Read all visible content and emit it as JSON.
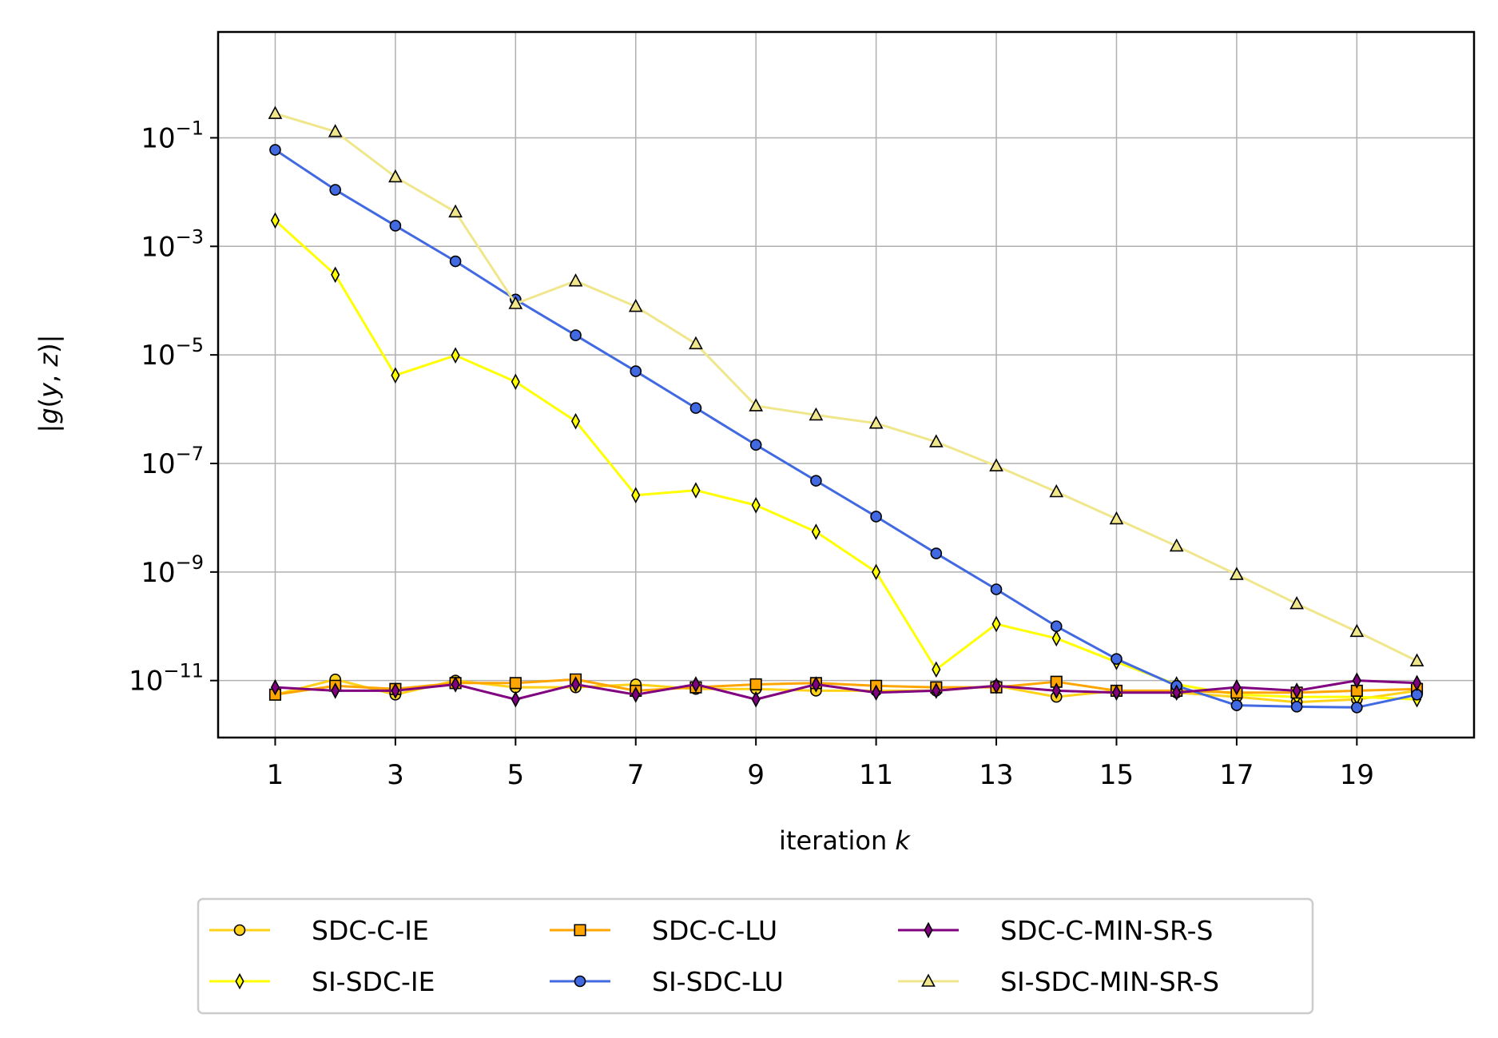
{
  "chart_data": {
    "type": "line",
    "title": "",
    "xlabel": "iteration k",
    "ylabel": "|g(y, z)|",
    "yscale": "log",
    "xlim": [
      0.05,
      20.95
    ],
    "ylim_exp": [
      -12.05,
      0.95
    ],
    "grid": true,
    "legend_position": "bottom-center",
    "x": [
      1,
      2,
      3,
      4,
      5,
      6,
      7,
      8,
      9,
      10,
      11,
      12,
      13,
      14,
      15,
      16,
      17,
      18,
      19,
      20
    ],
    "xticks": [
      1,
      3,
      5,
      7,
      9,
      11,
      13,
      15,
      17,
      19
    ],
    "xtick_labels": [
      "1",
      "3",
      "5",
      "7",
      "9",
      "11",
      "13",
      "15",
      "17",
      "19"
    ],
    "yticks_exp": [
      -1,
      -3,
      -5,
      -7,
      -9,
      -11
    ],
    "ytick_labels": [
      {
        "base": "10",
        "exp": "−1"
      },
      {
        "base": "10",
        "exp": "−3"
      },
      {
        "base": "10",
        "exp": "−5"
      },
      {
        "base": "10",
        "exp": "−7"
      },
      {
        "base": "10",
        "exp": "−9"
      },
      {
        "base": "10",
        "exp": "−11"
      }
    ],
    "series": [
      {
        "name": "SDC-C-IE",
        "color": "#ffd21a",
        "marker": "circle",
        "values": [
          5.5e-12,
          1.05e-11,
          5.5e-12,
          1e-11,
          7.5e-12,
          7.5e-12,
          8.5e-12,
          7e-12,
          7e-12,
          6.5e-12,
          6.5e-12,
          6.5e-12,
          8e-12,
          5e-12,
          6.5e-12,
          6e-12,
          5e-12,
          4e-12,
          4.5e-12,
          6.5e-12
        ]
      },
      {
        "name": "SI-SDC-IE",
        "color": "#ffff00",
        "marker": "thin_diamond",
        "values": [
          0.003,
          0.0003,
          4.2e-06,
          9.8e-06,
          3.2e-06,
          6e-07,
          2.6e-08,
          3.2e-08,
          1.7e-08,
          5.5e-09,
          1e-09,
          1.6e-11,
          1.1e-10,
          6e-11,
          2.2e-11,
          8.5e-12,
          5.5e-12,
          5e-12,
          5e-12,
          4.5e-12
        ]
      },
      {
        "name": "SDC-C-LU",
        "color": "#ffa500",
        "marker": "square",
        "values": [
          5.5e-12,
          8e-12,
          7e-12,
          9e-12,
          9e-12,
          1.05e-11,
          6.5e-12,
          7.5e-12,
          8.5e-12,
          9e-12,
          8e-12,
          7.5e-12,
          7.5e-12,
          9.5e-12,
          6.5e-12,
          6.5e-12,
          6e-12,
          6e-12,
          6.5e-12,
          7e-12
        ]
      },
      {
        "name": "SI-SDC-LU",
        "color": "#4169e1",
        "marker": "circle",
        "values": [
          0.06,
          0.011,
          0.0024,
          0.00053,
          0.000105,
          2.3e-05,
          5e-06,
          1.05e-06,
          2.2e-07,
          4.8e-08,
          1.05e-08,
          2.2e-09,
          4.8e-10,
          1e-10,
          2.5e-11,
          8e-12,
          3.5e-12,
          3.3e-12,
          3.2e-12,
          5.5e-12
        ]
      },
      {
        "name": "SDC-C-MIN-SR-S",
        "color": "#800080",
        "marker": "thin_diamond",
        "values": [
          7.5e-12,
          6.5e-12,
          6.5e-12,
          8.5e-12,
          4.5e-12,
          8.5e-12,
          5.5e-12,
          8.5e-12,
          4.5e-12,
          8.5e-12,
          6e-12,
          6.5e-12,
          8e-12,
          6.5e-12,
          6e-12,
          6e-12,
          7.5e-12,
          6.5e-12,
          1e-11,
          9e-12
        ]
      },
      {
        "name": "SI-SDC-MIN-SR-S",
        "color": "#f0e68c",
        "marker": "triangle",
        "values": [
          0.28,
          0.13,
          0.019,
          0.0043,
          8.8e-05,
          0.00023,
          7.8e-05,
          1.6e-05,
          1.15e-06,
          7.8e-07,
          5.5e-07,
          2.5e-07,
          9e-08,
          3e-08,
          9.5e-09,
          3e-09,
          9e-10,
          2.6e-10,
          8e-11,
          2.3e-11
        ]
      }
    ],
    "legend_order": [
      "SDC-C-IE",
      "SI-SDC-IE",
      "SDC-C-LU",
      "SI-SDC-LU",
      "SDC-C-MIN-SR-S",
      "SI-SDC-MIN-SR-S"
    ]
  }
}
